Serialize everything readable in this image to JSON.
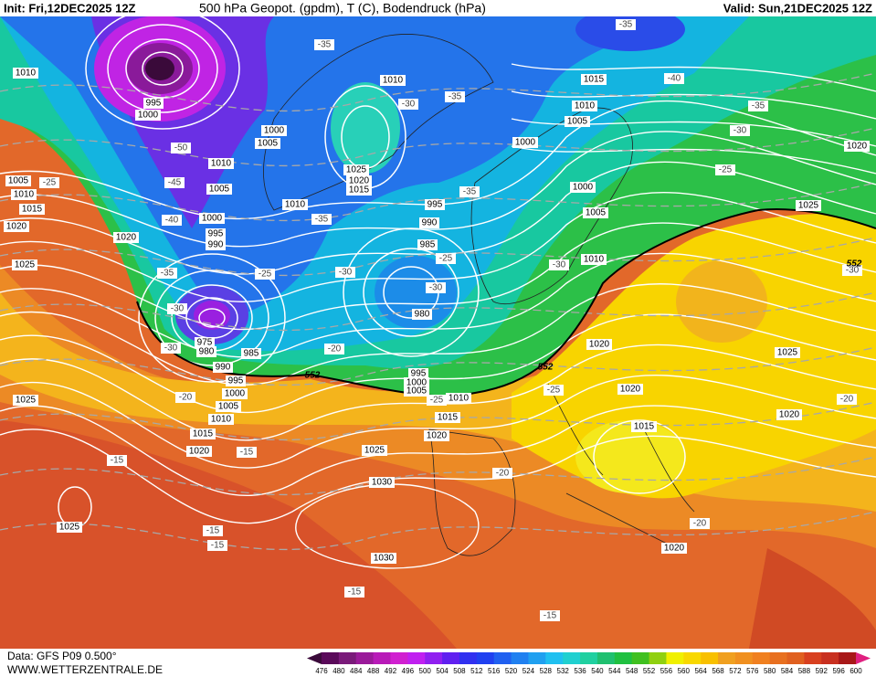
{
  "header": {
    "init": "Init: Fri,12DEC2025 12Z",
    "title": "500 hPa Geopot. (gpdm), T (C), Bodendruck (hPa)",
    "valid": "Valid: Sun,21DEC2025 12Z"
  },
  "map": {
    "isobar_labels": [
      "1010",
      "995",
      "1000",
      "1000",
      "1005",
      "1010",
      "1005",
      "1010",
      "1025",
      "1020",
      "1015",
      "1010",
      "1000",
      "995",
      "990",
      "1020",
      "1025",
      "1005",
      "1010",
      "1015",
      "1020",
      "1000",
      "995",
      "990",
      "985",
      "980",
      "975",
      "980",
      "985",
      "990",
      "995",
      "1000",
      "1005",
      "1010",
      "1015",
      "1020",
      "1025",
      "995",
      "1000",
      "1005",
      "1010",
      "1015",
      "1020",
      "1025",
      "1030",
      "1030",
      "1025",
      "1015",
      "1010",
      "1005",
      "1000",
      "1005",
      "1010",
      "1020",
      "1020",
      "1015",
      "1020",
      "1025",
      "1025",
      "1020",
      "1020"
    ],
    "isotherm_labels": [
      "-35",
      "-35",
      "-35",
      "-30",
      "-50",
      "-45",
      "-25",
      "-40",
      "-35",
      "-30",
      "-30",
      "-25",
      "-35",
      "-30",
      "-35",
      "-25",
      "-30",
      "-20",
      "-20",
      "-25",
      "-25",
      "-30",
      "-40",
      "-35",
      "-30",
      "-25",
      "-30",
      "-20",
      "-20",
      "-20",
      "-15",
      "-15",
      "-15",
      "-15",
      "-15",
      "-15"
    ],
    "geopotential_labels": [
      "552",
      "552",
      "552"
    ]
  },
  "footer": {
    "data": "Data: GFS P09 0.500°",
    "site": "WWW.WETTERZENTRALE.DE"
  },
  "colorbar": {
    "levels": [
      476,
      480,
      484,
      488,
      492,
      496,
      500,
      504,
      508,
      512,
      516,
      520,
      524,
      528,
      532,
      536,
      540,
      544,
      548,
      552,
      556,
      560,
      564,
      568,
      572,
      576,
      580,
      584,
      588,
      592,
      596,
      600
    ],
    "colors": [
      "#3a0a3a",
      "#5a0a5a",
      "#7a1a7a",
      "#9a1a9a",
      "#b81ab8",
      "#d020d0",
      "#c020f0",
      "#9020f0",
      "#6020f0",
      "#3030f0",
      "#2040f0",
      "#2060f0",
      "#2080f0",
      "#20a0f0",
      "#20c0f0",
      "#20d0d0",
      "#20d0a0",
      "#20c070",
      "#20c040",
      "#40c020",
      "#90d010",
      "#f0f000",
      "#f8d800",
      "#f8c000",
      "#f0a020",
      "#f09020",
      "#f08020",
      "#e87020",
      "#e06020",
      "#d84020",
      "#c83020",
      "#a81818",
      "#e02080"
    ]
  }
}
